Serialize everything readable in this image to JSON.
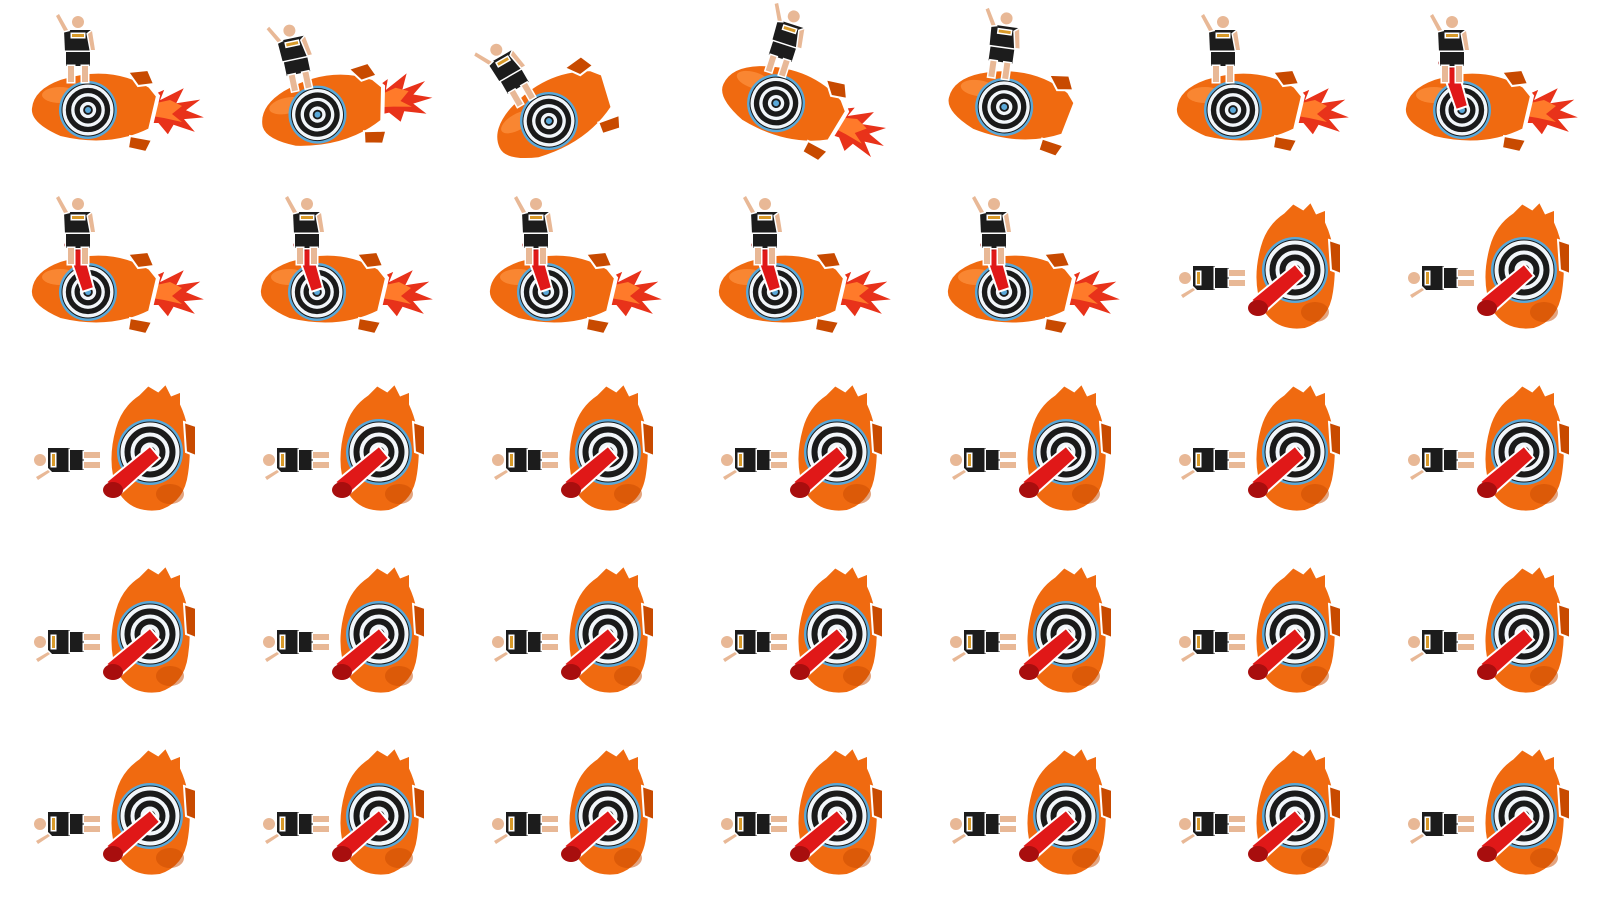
{
  "sheet": {
    "kind": "sprite-sheet",
    "columns": 7,
    "rows": 5,
    "background": "#ffffff"
  },
  "colors": {
    "rocket_body": "#f06a10",
    "rocket_shade": "#c84a00",
    "rocket_highlight": "#ff9a4a",
    "flame_outer": "#e8321a",
    "flame_inner": "#ff7a2a",
    "target_ring_dark": "#1a1a1a",
    "target_ring_light": "#f2f6fa",
    "target_rim": "#5aa8d8",
    "plunger": "#e01818",
    "plunger_shade": "#a80e0e",
    "shirt": "#1c1c1c",
    "skin": "#e8b896",
    "sticker_outline": "#ffffff"
  },
  "frames": [
    {
      "phase": "standing-flying",
      "plunger": false,
      "flame": true,
      "tilt": 0
    },
    {
      "phase": "standing-flying",
      "plunger": false,
      "flame": true,
      "tilt": -12
    },
    {
      "phase": "standing-flying",
      "plunger": false,
      "flame": false,
      "tilt": -30
    },
    {
      "phase": "standing-flying",
      "plunger": false,
      "flame": true,
      "tilt": 18
    },
    {
      "phase": "standing-flying",
      "plunger": false,
      "flame": false,
      "tilt": 8
    },
    {
      "phase": "standing-flying",
      "plunger": false,
      "flame": true,
      "tilt": 0
    },
    {
      "phase": "standing-hit",
      "plunger": true,
      "flame": true,
      "tilt": 0
    },
    {
      "phase": "standing-hit",
      "plunger": true,
      "flame": true,
      "tilt": 0
    },
    {
      "phase": "standing-hit",
      "plunger": true,
      "flame": true,
      "tilt": 0
    },
    {
      "phase": "standing-hit",
      "plunger": true,
      "flame": true,
      "tilt": 0
    },
    {
      "phase": "standing-hit",
      "plunger": true,
      "flame": true,
      "tilt": 0
    },
    {
      "phase": "standing-hit",
      "plunger": true,
      "flame": true,
      "tilt": 0
    },
    {
      "phase": "falling",
      "plunger": true,
      "flame": false,
      "tilt": -90
    },
    {
      "phase": "falling",
      "plunger": true,
      "flame": false,
      "tilt": -90
    },
    {
      "phase": "falling",
      "plunger": true,
      "flame": false,
      "tilt": -90
    },
    {
      "phase": "falling",
      "plunger": true,
      "flame": false,
      "tilt": -90
    },
    {
      "phase": "falling",
      "plunger": true,
      "flame": false,
      "tilt": -90
    },
    {
      "phase": "falling",
      "plunger": true,
      "flame": false,
      "tilt": -90
    },
    {
      "phase": "falling",
      "plunger": true,
      "flame": false,
      "tilt": -90
    },
    {
      "phase": "falling",
      "plunger": true,
      "flame": false,
      "tilt": -90
    },
    {
      "phase": "falling",
      "plunger": true,
      "flame": false,
      "tilt": -90
    },
    {
      "phase": "falling",
      "plunger": true,
      "flame": false,
      "tilt": -90
    },
    {
      "phase": "falling",
      "plunger": true,
      "flame": false,
      "tilt": -90
    },
    {
      "phase": "falling",
      "plunger": true,
      "flame": false,
      "tilt": -90
    },
    {
      "phase": "falling",
      "plunger": true,
      "flame": false,
      "tilt": -90
    },
    {
      "phase": "falling",
      "plunger": true,
      "flame": false,
      "tilt": -90
    },
    {
      "phase": "falling",
      "plunger": true,
      "flame": false,
      "tilt": -90
    },
    {
      "phase": "falling",
      "plunger": true,
      "flame": false,
      "tilt": -90
    },
    {
      "phase": "falling",
      "plunger": true,
      "flame": false,
      "tilt": -90
    },
    {
      "phase": "falling",
      "plunger": true,
      "flame": false,
      "tilt": -90
    },
    {
      "phase": "falling",
      "plunger": true,
      "flame": false,
      "tilt": -90
    },
    {
      "phase": "falling",
      "plunger": true,
      "flame": false,
      "tilt": -90
    },
    {
      "phase": "falling",
      "plunger": true,
      "flame": false,
      "tilt": -90
    },
    {
      "phase": "falling",
      "plunger": true,
      "flame": false,
      "tilt": -90
    },
    {
      "phase": "falling",
      "plunger": true,
      "flame": false,
      "tilt": -90
    }
  ]
}
